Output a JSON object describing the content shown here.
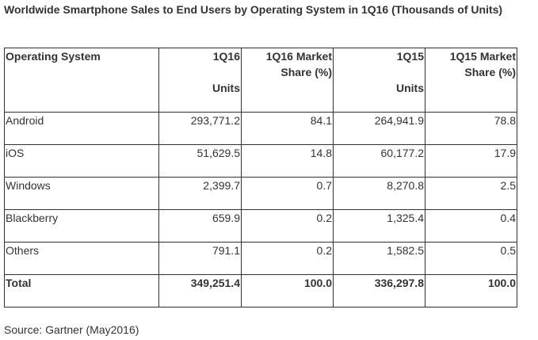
{
  "title": "Worldwide Smartphone Sales to End Users by Operating System in 1Q16 (Thousands of Units)",
  "chart_data": {
    "type": "table",
    "title": "Worldwide Smartphone Sales to End Users by Operating System in 1Q16 (Thousands of Units)",
    "columns": [
      {
        "key": "os",
        "label": "Operating System"
      },
      {
        "key": "units_1q16",
        "label_line1": "1Q16",
        "label_line2": "Units"
      },
      {
        "key": "share_1q16",
        "label_line1": "1Q16 Market",
        "label_line2": "Share (%)"
      },
      {
        "key": "units_1q15",
        "label_line1": "1Q15",
        "label_line2": "Units"
      },
      {
        "key": "share_1q15",
        "label_line1": "1Q15 Market",
        "label_line2": "Share (%)"
      }
    ],
    "rows": [
      {
        "os": "Android",
        "units_1q16": "293,771.2",
        "share_1q16": "84.1",
        "units_1q15": "264,941.9",
        "share_1q15": "78.8"
      },
      {
        "os": "iOS",
        "units_1q16": "51,629.5",
        "share_1q16": "14.8",
        "units_1q15": "60,177.2",
        "share_1q15": "17.9"
      },
      {
        "os": "Windows",
        "units_1q16": "2,399.7",
        "share_1q16": "0.7",
        "units_1q15": "8,270.8",
        "share_1q15": "2.5"
      },
      {
        "os": "Blackberry",
        "units_1q16": "659.9",
        "share_1q16": "0.2",
        "units_1q15": "1,325.4",
        "share_1q15": "0.4"
      },
      {
        "os": "Others",
        "units_1q16": "791.1",
        "share_1q16": "0.2",
        "units_1q15": "1,582.5",
        "share_1q15": "0.5"
      }
    ],
    "total": {
      "os": "Total",
      "units_1q16": "349,251.4",
      "share_1q16": "100.0",
      "units_1q15": "336,297.8",
      "share_1q15": "100.0"
    }
  },
  "source": "Source: Gartner (May2016)"
}
